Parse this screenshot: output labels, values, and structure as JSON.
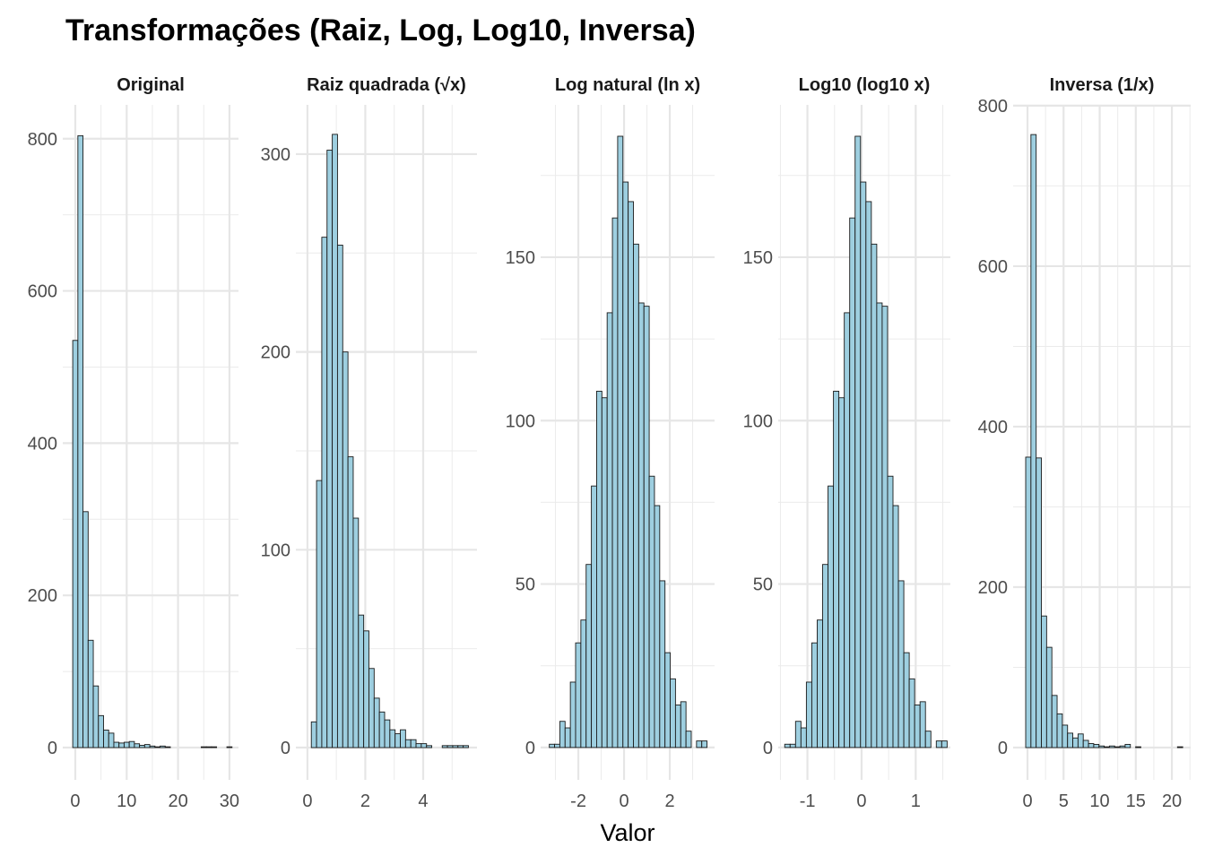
{
  "chart_data": {
    "type": "bar",
    "title": "Transformações (Raiz, Log, Log10, Inversa)",
    "xlabel": "Valor",
    "ylabel": "",
    "grid": true,
    "colors": {
      "fill": "#9ecfe0",
      "stroke": "#1a1a1a",
      "grid": "#ebebeb",
      "tick_text": "#4d4d4d"
    },
    "panels": [
      {
        "strip": "Original",
        "xlim": [
          -2.44,
          31.76
        ],
        "ylim": [
          -42.4,
          844.5
        ],
        "xticks": [
          0,
          10,
          20,
          30
        ],
        "yticks": [
          0,
          200,
          400,
          600,
          800
        ],
        "bin_start": -0.5,
        "bin_width": 1,
        "counts": [
          535,
          804,
          310,
          141,
          81,
          42,
          23,
          19,
          7,
          6,
          7,
          8,
          5,
          3,
          4,
          2,
          1,
          2,
          1,
          0,
          0,
          0,
          0,
          0,
          0,
          1,
          1,
          1,
          0,
          0,
          1
        ]
      },
      {
        "strip": "Raiz quadrada (√x)",
        "xlim": [
          -0.4,
          5.86
        ],
        "ylim": [
          -16.3,
          324.9
        ],
        "xticks": [
          0,
          2,
          4
        ],
        "yticks": [
          0,
          100,
          200,
          300
        ],
        "bin_start": 0.134,
        "bin_width": 0.181,
        "counts": [
          13,
          135,
          258,
          302,
          310,
          254,
          200,
          147,
          116,
          67,
          59,
          40,
          25,
          18,
          14,
          9,
          7,
          9,
          4,
          4,
          2,
          2,
          1,
          0,
          0,
          1,
          1,
          1,
          1,
          1
        ]
      },
      {
        "strip": "Log natural (ln x)",
        "xlim": [
          -3.65,
          3.96
        ],
        "ylim": [
          -9.9,
          196.6
        ],
        "xticks": [
          -2,
          0,
          2
        ],
        "yticks": [
          0,
          50,
          100,
          150
        ],
        "bin_start": -3.27,
        "bin_width": 0.23,
        "counts": [
          1,
          1,
          8,
          6,
          20,
          32,
          39,
          56,
          80,
          109,
          107,
          133,
          162,
          187,
          173,
          167,
          154,
          136,
          135,
          83,
          74,
          51,
          29,
          21,
          13,
          14,
          5,
          0,
          2,
          2
        ]
      },
      {
        "strip": "Log10 (log10 x)",
        "xlim": [
          -1.54,
          1.64
        ],
        "ylim": [
          -9.9,
          196.6
        ],
        "xticks": [
          -1,
          0,
          1
        ],
        "yticks": [
          0,
          50,
          100,
          150
        ],
        "bin_start": -1.42,
        "bin_width": 0.1,
        "counts": [
          1,
          1,
          8,
          6,
          20,
          32,
          39,
          56,
          80,
          109,
          107,
          133,
          162,
          187,
          173,
          167,
          154,
          136,
          135,
          83,
          74,
          51,
          29,
          21,
          13,
          14,
          5,
          0,
          2,
          2
        ]
      },
      {
        "strip": "Inversa (1/x)",
        "xlim": [
          -1.99,
          22.6
        ],
        "ylim": [
          -40.2,
          801
        ],
        "xticks": [
          0,
          5,
          10,
          15,
          20
        ],
        "yticks": [
          0,
          200,
          400,
          600,
          800
        ],
        "bin_start": -0.25,
        "bin_width": 0.725,
        "counts": [
          362,
          764,
          361,
          164,
          125,
          65,
          42,
          28,
          18,
          12,
          17,
          9,
          5,
          4,
          2,
          1,
          2,
          1,
          2,
          4,
          0,
          1,
          0,
          0,
          0,
          0,
          0,
          0,
          0,
          1
        ]
      }
    ]
  }
}
